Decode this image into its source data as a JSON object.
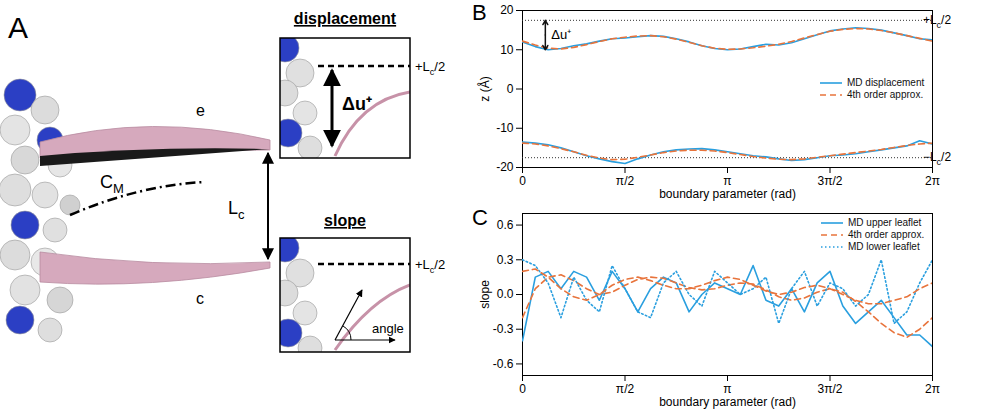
{
  "diagram": {
    "panel_label": "A",
    "upper_surface": "e",
    "lower_surface": "c",
    "midplane": {
      "pre": "C",
      "sub": "M",
      "post": ""
    },
    "thickness": {
      "pre": "L",
      "sub": "c",
      "post": ""
    },
    "insets": [
      {
        "title": "displacement",
        "reference": {
          "pre": "+L",
          "sub": "c",
          "post": "/2"
        },
        "label": "Δu⁺"
      },
      {
        "title": "slope",
        "reference": {
          "pre": "+L",
          "sub": "c",
          "post": "/2"
        },
        "label": "angle"
      }
    ]
  },
  "chart_data": [
    {
      "panel_label": "B",
      "type": "line",
      "x_label": "boundary parameter (rad)",
      "y_label": "z (Å)",
      "x": [
        0,
        0.196,
        0.393,
        0.589,
        0.785,
        0.982,
        1.178,
        1.374,
        1.571,
        1.767,
        1.963,
        2.16,
        2.356,
        2.553,
        2.749,
        2.945,
        3.142,
        3.338,
        3.534,
        3.731,
        3.927,
        4.123,
        4.32,
        4.516,
        4.712,
        4.909,
        5.105,
        5.301,
        5.498,
        5.694,
        5.89,
        6.087,
        6.283
      ],
      "xlim": [
        0,
        6.2832
      ],
      "xticks": [
        0,
        {
          "value": 1.5708,
          "label": "π/2"
        },
        {
          "value": 3.1416,
          "label": "π"
        },
        {
          "value": 4.7124,
          "label": "3π/2"
        },
        {
          "value": 6.2832,
          "label": "2π"
        }
      ],
      "ylim": [
        -20,
        20
      ],
      "yticks": [
        -20,
        -10,
        0,
        10,
        20
      ],
      "legend": "right",
      "series": [
        {
          "name": "MD displacement",
          "color": "#2a9fdf",
          "line_style": "solid",
          "values": [
            12.0,
            10.8,
            10.0,
            10.3,
            11.0,
            11.5,
            12.2,
            12.8,
            13.0,
            13.3,
            13.6,
            13.4,
            12.8,
            12.0,
            11.0,
            10.3,
            10.0,
            10.2,
            10.8,
            11.4,
            11.2,
            11.8,
            12.8,
            13.8,
            14.8,
            15.3,
            15.6,
            15.4,
            15.0,
            14.3,
            13.6,
            12.8,
            12.5
          ]
        },
        {
          "name": "4th order approx.",
          "color": "#e8743c",
          "line_style": "dashed",
          "values": [
            12.2,
            11.2,
            10.4,
            10.2,
            10.6,
            11.3,
            12.1,
            12.8,
            13.2,
            13.5,
            13.6,
            13.3,
            12.7,
            11.9,
            11.0,
            10.4,
            10.1,
            10.2,
            10.5,
            10.9,
            11.4,
            12.1,
            13.0,
            13.9,
            14.7,
            15.2,
            15.4,
            15.3,
            14.9,
            14.3,
            13.6,
            12.9,
            12.2
          ]
        },
        {
          "name": "MD displacement",
          "color": "#2a9fdf",
          "line_style": "solid",
          "values": [
            -13.5,
            -13.8,
            -14.2,
            -15.0,
            -16.0,
            -17.0,
            -17.8,
            -18.5,
            -19.0,
            -17.8,
            -16.8,
            -16.0,
            -15.5,
            -15.3,
            -15.2,
            -15.5,
            -16.0,
            -16.5,
            -17.0,
            -17.3,
            -17.8,
            -18.2,
            -18.0,
            -17.5,
            -17.0,
            -16.8,
            -16.5,
            -16.0,
            -15.5,
            -15.0,
            -14.5,
            -13.2,
            -14.0
          ]
        },
        {
          "name": "4th order approx.",
          "color": "#e8743c",
          "line_style": "dashed",
          "values": [
            -13.8,
            -14.0,
            -14.5,
            -15.2,
            -16.0,
            -16.9,
            -17.6,
            -18.0,
            -17.9,
            -17.4,
            -16.8,
            -16.2,
            -15.8,
            -15.6,
            -15.6,
            -15.8,
            -16.2,
            -16.7,
            -17.2,
            -17.6,
            -17.9,
            -18.0,
            -17.8,
            -17.4,
            -17.0,
            -16.6,
            -16.2,
            -15.8,
            -15.4,
            -14.9,
            -14.4,
            -14.0,
            -13.8
          ]
        }
      ],
      "reference_lines": [
        {
          "value": 17.5,
          "label": {
            "pre": "+L",
            "sub": "c",
            "post": "/2"
          }
        },
        {
          "value": -17.5,
          "label": {
            "pre": "−L",
            "sub": "c",
            "post": "/2"
          }
        }
      ],
      "annotations": [
        {
          "text": "Δu⁺",
          "x": 0.35,
          "y_from": 10.0,
          "y_to": 17.5
        }
      ]
    },
    {
      "panel_label": "C",
      "type": "line",
      "x_label": "boundary parameter (rad)",
      "y_label": "slope",
      "x": [
        0,
        0.196,
        0.393,
        0.589,
        0.785,
        0.982,
        1.178,
        1.374,
        1.571,
        1.767,
        1.963,
        2.16,
        2.356,
        2.553,
        2.749,
        2.945,
        3.142,
        3.338,
        3.534,
        3.731,
        3.927,
        4.123,
        4.32,
        4.516,
        4.712,
        4.909,
        5.105,
        5.301,
        5.498,
        5.694,
        5.89,
        6.087,
        6.283
      ],
      "xlim": [
        0,
        6.2832
      ],
      "xticks": [
        0,
        {
          "value": 1.5708,
          "label": "π/2"
        },
        {
          "value": 3.1416,
          "label": "π"
        },
        {
          "value": 4.7124,
          "label": "3π/2"
        },
        {
          "value": 6.2832,
          "label": "2π"
        }
      ],
      "ylim": [
        -0.7,
        0.7
      ],
      "yticks": [
        -0.6,
        -0.3,
        {
          "value": 0,
          "label": "0.0"
        },
        0.3,
        0.6
      ],
      "legend": "upper right",
      "series": [
        {
          "name": "MD upper leaflet",
          "color": "#2a9fdf",
          "line_style": "solid",
          "values": [
            -0.4,
            0.15,
            0.2,
            0.05,
            0.2,
            0.15,
            -0.05,
            0.2,
            0.05,
            -0.15,
            0.05,
            0.15,
            0.1,
            -0.15,
            0.0,
            0.1,
            0.05,
            0.0,
            0.25,
            -0.05,
            -0.1,
            0.05,
            -0.15,
            0.1,
            0.2,
            -0.1,
            -0.25,
            -0.15,
            -0.05,
            -0.2,
            -0.35,
            -0.35,
            -0.45
          ]
        },
        {
          "name": "4th order approx.",
          "color": "#e8743c",
          "line_style": "dashed",
          "values": [
            -0.2,
            0.05,
            0.15,
            0.17,
            0.12,
            0.05,
            0.0,
            0.02,
            0.08,
            0.13,
            0.15,
            0.14,
            0.1,
            0.06,
            0.04,
            0.05,
            0.08,
            0.1,
            0.09,
            0.04,
            -0.02,
            -0.05,
            -0.03,
            0.02,
            0.05,
            0.02,
            -0.06,
            -0.15,
            -0.25,
            -0.33,
            -0.37,
            -0.3,
            -0.2
          ]
        },
        {
          "name": "MD lower leaflet",
          "color": "#2a9fdf",
          "line_style": "dotted",
          "values": [
            0.3,
            0.25,
            0.1,
            -0.2,
            0.15,
            -0.05,
            -0.15,
            0.25,
            0.05,
            -0.15,
            -0.2,
            0.1,
            0.2,
            0.0,
            -0.1,
            0.2,
            0.1,
            0.0,
            0.05,
            0.15,
            -0.25,
            0.05,
            0.2,
            -0.1,
            0.1,
            0.05,
            -0.1,
            0.0,
            0.3,
            -0.25,
            -0.15,
            0.1,
            0.3
          ]
        },
        {
          "name": "4th order approx.",
          "color": "#e8743c",
          "line_style": "dashed",
          "values": [
            0.2,
            0.22,
            0.15,
            0.05,
            -0.02,
            -0.05,
            0.0,
            0.08,
            0.13,
            0.15,
            0.12,
            0.08,
            0.05,
            0.05,
            0.08,
            0.12,
            0.15,
            0.13,
            0.08,
            0.03,
            0.0,
            0.02,
            0.06,
            0.08,
            0.05,
            0.0,
            -0.05,
            -0.08,
            -0.08,
            -0.05,
            -0.02,
            0.05,
            0.1
          ]
        }
      ]
    }
  ]
}
